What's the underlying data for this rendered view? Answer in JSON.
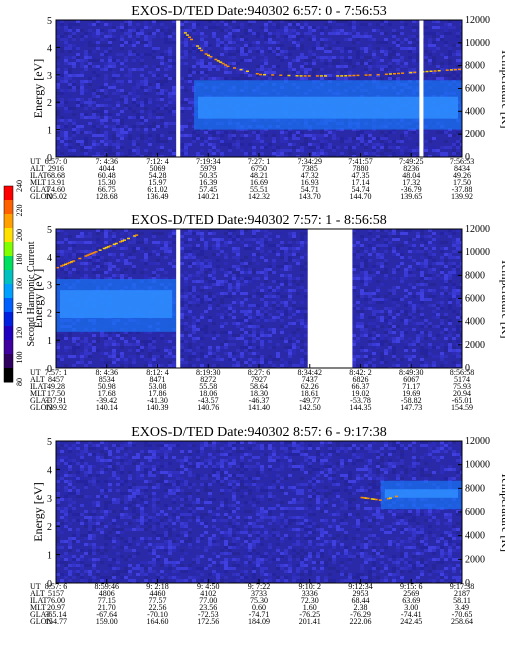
{
  "colors": {
    "background_low": "#2a2aa8",
    "band": "#1a70f0",
    "band_core": "#2f8dff",
    "noise": "#3b3bd0",
    "hot": "#ff8c00",
    "gap": "#ffffff"
  },
  "colorbar": {
    "label": "Second Harmonic Current",
    "ticks": [
      "240",
      "220",
      "200",
      "180",
      "160",
      "140",
      "120",
      "100",
      "80"
    ],
    "colors": [
      "#ff0000",
      "#ff6000",
      "#ffa000",
      "#ffe000",
      "#80ff00",
      "#00e060",
      "#00c0c0",
      "#00a0ff",
      "#0060ff",
      "#0020e0",
      "#2000c0",
      "#4000a0",
      "#300060",
      "#000000"
    ]
  },
  "chart_data": [
    {
      "type": "heatmap",
      "title": "EXOS-D/TED   Date:940302  6:57: 0 - 7:56:53",
      "ylabel": "Energy [eV]",
      "ylabel_right": "Temperature [K]",
      "ylim": [
        0,
        5
      ],
      "ylim_right": [
        0,
        12000
      ],
      "yticks": [
        "0",
        "1",
        "2",
        "3",
        "4",
        "5"
      ],
      "yticks_right": [
        "0",
        "2000",
        "4000",
        "6000",
        "8000",
        "10000",
        "12000"
      ],
      "gaps": [
        [
          0.296,
          0.306
        ],
        [
          0.895,
          0.905
        ]
      ],
      "band": {
        "low": 1.0,
        "high": 2.8,
        "start": 0.34,
        "end": 1.0,
        "core_low": 1.4,
        "core_high": 2.2
      },
      "hot_trace": [
        [
          0.31,
          4.6
        ],
        [
          0.36,
          3.8
        ],
        [
          0.42,
          3.3
        ],
        [
          0.5,
          3.0
        ],
        [
          0.6,
          2.95
        ],
        [
          0.7,
          2.95
        ],
        [
          0.8,
          3.0
        ],
        [
          0.9,
          3.1
        ],
        [
          1.0,
          3.2
        ]
      ],
      "rows": {
        "labels": [
          "UT",
          "ALT",
          "ILAT",
          "MLT",
          "GLAT",
          "GLON"
        ],
        "columns": [
          [
            "6:57: 0",
            "2916",
            "68.68",
            "13.91",
            "74.60",
            "105.02"
          ],
          [
            "7: 4:36",
            "4044",
            "60.48",
            "15.30",
            "66.75",
            "128.68"
          ],
          [
            "7:12: 4",
            "5069",
            "54.28",
            "15.97",
            "6:1.02",
            "136.49"
          ],
          [
            "7:19:34",
            "5979",
            "50.35",
            "16.39",
            "57.45",
            "140.21"
          ],
          [
            "7:27: 1",
            "6750",
            "48.21",
            "16.69",
            "55.51",
            "142.32"
          ],
          [
            "7:34:29",
            "7385",
            "47.32",
            "16.93",
            "54.71",
            "143.70"
          ],
          [
            "7:41:57",
            "7880",
            "47.35",
            "17.14",
            "54.74",
            "144.70"
          ],
          [
            "7:49:25",
            "8236",
            "48.04",
            "17.32",
            "-36.79",
            "139.65"
          ],
          [
            "7:56:53",
            "8434",
            "49.26",
            "17.50",
            "-37.88",
            "139.92"
          ]
        ]
      }
    },
    {
      "type": "heatmap",
      "title": "EXOS-D/TED   Date:940302  7:57: 1 - 8:56:58",
      "ylabel": "Energy [eV]",
      "ylabel_right": "Temperature [K]",
      "ylim": [
        0,
        5
      ],
      "ylim_right": [
        0,
        12000
      ],
      "yticks": [
        "0",
        "1",
        "2",
        "3",
        "4",
        "5"
      ],
      "yticks_right": [
        "0",
        "2000",
        "4000",
        "6000",
        "8000",
        "10000",
        "12000"
      ],
      "gaps": [
        [
          0.296,
          0.306
        ],
        [
          0.62,
          0.73
        ]
      ],
      "band": {
        "low": 1.3,
        "high": 3.2,
        "start": 0.0,
        "end": 0.296,
        "core_low": 1.8,
        "core_high": 2.8
      },
      "hot_trace": [
        [
          0.0,
          3.6
        ],
        [
          0.05,
          3.9
        ],
        [
          0.1,
          4.2
        ],
        [
          0.15,
          4.5
        ],
        [
          0.2,
          4.8
        ]
      ],
      "rows": {
        "labels": [
          "UT",
          "ALT",
          "ILAT",
          "MLT",
          "GLAT",
          "GLON"
        ],
        "columns": [
          [
            "7:57: 1",
            "8457",
            "49.28",
            "17.50",
            "-37.91",
            "139.92"
          ],
          [
            "8: 4:36",
            "8534",
            "50.98",
            "17.68",
            "-39.42",
            "140.14"
          ],
          [
            "8:12: 4",
            "8471",
            "53.08",
            "17.86",
            "-41.30",
            "140.39"
          ],
          [
            "8:19:30",
            "8272",
            "55.58",
            "18.06",
            "-43.57",
            "140.76"
          ],
          [
            "8:27: 6",
            "7927",
            "58.64",
            "18.30",
            "-46.37",
            "141.40"
          ],
          [
            "8:34:42",
            "7437",
            "62.26",
            "18.61",
            "-49.77",
            "142.50"
          ],
          [
            "8:42: 2",
            "6826",
            "66.37",
            "19.02",
            "-53.78",
            "144.35"
          ],
          [
            "8:49:30",
            "6067",
            "71.17",
            "19.69",
            "-58.82",
            "147.73"
          ],
          [
            "8:56:58",
            "5174",
            "75.93",
            "20.94",
            "-65.01",
            "154.59"
          ]
        ]
      }
    },
    {
      "type": "heatmap",
      "title": "EXOS-D/TED   Date:940302  8:57: 6 - 9:17:38",
      "ylabel": "Energy [eV]",
      "ylabel_right": "Temperature [K]",
      "ylim": [
        0,
        5
      ],
      "ylim_right": [
        0,
        12000
      ],
      "yticks": [
        "0",
        "1",
        "2",
        "3",
        "4",
        "5"
      ],
      "yticks_right": [
        "0",
        "2000",
        "4000",
        "6000",
        "8000",
        "10000",
        "12000"
      ],
      "gaps": [],
      "band": {
        "low": 2.6,
        "high": 3.6,
        "start": 0.8,
        "end": 1.0,
        "core_low": 3.0,
        "core_high": 3.3
      },
      "hot_trace": [
        [
          0.75,
          3.0
        ],
        [
          0.8,
          2.9
        ],
        [
          0.85,
          3.1
        ]
      ],
      "rows": {
        "labels": [
          "UT",
          "ALT",
          "ILAT",
          "MLT",
          "GLAT",
          "GLON"
        ],
        "columns": [
          [
            "8:57: 6",
            "5157",
            "76.00",
            "20.97",
            "-65.14",
            "154.77"
          ],
          [
            "8:59:46",
            "4806",
            "77.15",
            "21.70",
            "-67.64",
            "159.00"
          ],
          [
            "9: 2:18",
            "4460",
            "77.57",
            "22.56",
            "-70.10",
            "164.60"
          ],
          [
            "9: 4:50",
            "4102",
            "77.00",
            "23.56",
            "-72.53",
            "172.56"
          ],
          [
            "9: 7:22",
            "3733",
            "75.30",
            "0.60",
            "-74.71",
            "184.09"
          ],
          [
            "9:10: 2",
            "3336",
            "72.30",
            "1.60",
            "-76.25",
            "201.41"
          ],
          [
            "9:12:34",
            "2953",
            "68.44",
            "2.38",
            "-76.29",
            "222.06"
          ],
          [
            "9:15: 6",
            "2569",
            "63.69",
            "3.00",
            "-74.41",
            "242.45"
          ],
          [
            "9:17:38",
            "2187",
            "58.11",
            "3.49",
            "-70.65",
            "258.64"
          ]
        ]
      }
    }
  ]
}
